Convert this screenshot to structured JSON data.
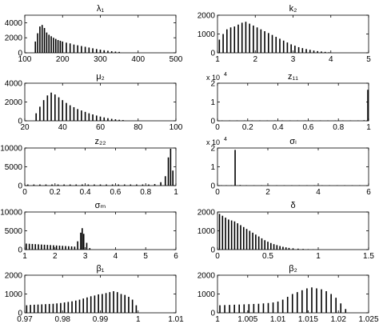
{
  "chart_data": [
    {
      "type": "bar",
      "title": "λ₁",
      "xlim": [
        100,
        500
      ],
      "ylim": [
        0,
        5000
      ],
      "xticks": [
        100,
        200,
        300,
        400,
        500
      ],
      "yticks": [
        0,
        2000,
        4000
      ],
      "xtick_labels": [
        "100",
        "200",
        "300",
        "400",
        "500"
      ],
      "ytick_labels": [
        "0",
        "2000",
        "4000"
      ],
      "y_exponent": "",
      "color": "#000000",
      "bins": [
        [
          128,
          1500
        ],
        [
          134,
          2600
        ],
        [
          140,
          3500
        ],
        [
          146,
          3700
        ],
        [
          152,
          3300
        ],
        [
          158,
          2700
        ],
        [
          164,
          2400
        ],
        [
          170,
          2200
        ],
        [
          176,
          2000
        ],
        [
          182,
          1850
        ],
        [
          188,
          1700
        ],
        [
          194,
          1600
        ],
        [
          200,
          1500
        ],
        [
          210,
          1350
        ],
        [
          220,
          1250
        ],
        [
          230,
          1100
        ],
        [
          240,
          1000
        ],
        [
          250,
          900
        ],
        [
          260,
          800
        ],
        [
          270,
          700
        ],
        [
          280,
          600
        ],
        [
          290,
          500
        ],
        [
          300,
          420
        ],
        [
          310,
          340
        ],
        [
          320,
          270
        ],
        [
          330,
          210
        ],
        [
          340,
          160
        ],
        [
          350,
          120
        ]
      ]
    },
    {
      "type": "bar",
      "title": "k₂",
      "xlim": [
        1,
        5
      ],
      "ylim": [
        0,
        2000
      ],
      "xticks": [
        1,
        2,
        3,
        4,
        5
      ],
      "yticks": [
        0,
        1000,
        2000
      ],
      "xtick_labels": [
        "1",
        "2",
        "3",
        "4",
        "5"
      ],
      "ytick_labels": [
        "0",
        "1000",
        "2000"
      ],
      "y_exponent": "",
      "color": "#000000",
      "bins": [
        [
          1.05,
          700
        ],
        [
          1.15,
          1000
        ],
        [
          1.25,
          1250
        ],
        [
          1.35,
          1350
        ],
        [
          1.45,
          1400
        ],
        [
          1.55,
          1500
        ],
        [
          1.65,
          1600
        ],
        [
          1.75,
          1650
        ],
        [
          1.85,
          1550
        ],
        [
          1.95,
          1450
        ],
        [
          2.05,
          1350
        ],
        [
          2.15,
          1250
        ],
        [
          2.25,
          1150
        ],
        [
          2.35,
          1050
        ],
        [
          2.45,
          950
        ],
        [
          2.55,
          850
        ],
        [
          2.65,
          750
        ],
        [
          2.75,
          650
        ],
        [
          2.85,
          550
        ],
        [
          2.95,
          450
        ],
        [
          3.05,
          380
        ],
        [
          3.15,
          300
        ],
        [
          3.25,
          250
        ],
        [
          3.35,
          200
        ],
        [
          3.45,
          160
        ],
        [
          3.55,
          120
        ],
        [
          3.65,
          90
        ],
        [
          3.75,
          70
        ],
        [
          3.85,
          50
        ],
        [
          3.95,
          30
        ]
      ]
    },
    {
      "type": "bar",
      "title": "μ₂",
      "xlim": [
        20,
        100
      ],
      "ylim": [
        0,
        4000
      ],
      "xticks": [
        20,
        40,
        60,
        80,
        100
      ],
      "yticks": [
        0,
        2000,
        4000
      ],
      "xtick_labels": [
        "20",
        "40",
        "60",
        "80",
        "100"
      ],
      "ytick_labels": [
        "0",
        "2000",
        "4000"
      ],
      "y_exponent": "",
      "color": "#000000",
      "bins": [
        [
          26,
          800
        ],
        [
          28,
          1500
        ],
        [
          30,
          2200
        ],
        [
          32,
          2700
        ],
        [
          34,
          3000
        ],
        [
          36,
          2800
        ],
        [
          38,
          2500
        ],
        [
          40,
          2200
        ],
        [
          42,
          1900
        ],
        [
          44,
          1650
        ],
        [
          46,
          1450
        ],
        [
          48,
          1250
        ],
        [
          50,
          1100
        ],
        [
          52,
          950
        ],
        [
          54,
          800
        ],
        [
          56,
          680
        ],
        [
          58,
          560
        ],
        [
          60,
          450
        ],
        [
          62,
          360
        ],
        [
          64,
          280
        ],
        [
          66,
          210
        ],
        [
          68,
          160
        ],
        [
          70,
          110
        ],
        [
          72,
          80
        ]
      ]
    },
    {
      "type": "bar",
      "title": "z₁₁",
      "xlim": [
        0,
        1
      ],
      "ylim": [
        0,
        20000
      ],
      "xticks": [
        0,
        0.2,
        0.4,
        0.6,
        0.8,
        1
      ],
      "yticks": [
        0,
        10000,
        20000
      ],
      "xtick_labels": [
        "0",
        "0.2",
        "0.4",
        "0.6",
        "0.8",
        "1"
      ],
      "ytick_labels": [
        "0",
        "1",
        "2"
      ],
      "y_exponent": "4",
      "color": "#000000",
      "bins": [
        [
          0.03,
          200
        ],
        [
          0.08,
          200
        ],
        [
          0.13,
          200
        ],
        [
          0.18,
          200
        ],
        [
          0.23,
          200
        ],
        [
          0.28,
          200
        ],
        [
          0.33,
          200
        ],
        [
          0.38,
          200
        ],
        [
          0.43,
          200
        ],
        [
          0.48,
          200
        ],
        [
          0.53,
          200
        ],
        [
          0.58,
          200
        ],
        [
          0.63,
          200
        ],
        [
          0.68,
          200
        ],
        [
          0.73,
          200
        ],
        [
          0.78,
          200
        ],
        [
          0.83,
          200
        ],
        [
          0.88,
          200
        ],
        [
          0.93,
          200
        ],
        [
          0.97,
          300
        ],
        [
          0.995,
          16500
        ]
      ]
    },
    {
      "type": "bar",
      "title": "z₂₂",
      "xlim": [
        0,
        1
      ],
      "ylim": [
        0,
        10000
      ],
      "xticks": [
        0,
        0.2,
        0.4,
        0.6,
        0.8,
        1
      ],
      "yticks": [
        0,
        5000,
        10000
      ],
      "xtick_labels": [
        "0",
        "0.2",
        "0.4",
        "0.6",
        "0.8",
        "1"
      ],
      "ytick_labels": [
        "0",
        "5000",
        "10000"
      ],
      "y_exponent": "",
      "color": "#000000",
      "bins": [
        [
          0.02,
          300
        ],
        [
          0.06,
          300
        ],
        [
          0.1,
          300
        ],
        [
          0.14,
          300
        ],
        [
          0.18,
          300
        ],
        [
          0.22,
          300
        ],
        [
          0.26,
          300
        ],
        [
          0.3,
          300
        ],
        [
          0.34,
          300
        ],
        [
          0.38,
          300
        ],
        [
          0.42,
          300
        ],
        [
          0.46,
          300
        ],
        [
          0.5,
          300
        ],
        [
          0.54,
          300
        ],
        [
          0.58,
          300
        ],
        [
          0.62,
          300
        ],
        [
          0.66,
          300
        ],
        [
          0.7,
          300
        ],
        [
          0.74,
          300
        ],
        [
          0.78,
          300
        ],
        [
          0.82,
          300
        ],
        [
          0.86,
          400
        ],
        [
          0.9,
          900
        ],
        [
          0.93,
          2500
        ],
        [
          0.95,
          7500
        ],
        [
          0.965,
          9800
        ],
        [
          0.98,
          4000
        ]
      ]
    },
    {
      "type": "bar",
      "title": "σₗ",
      "xlim": [
        0,
        6
      ],
      "ylim": [
        0,
        20000
      ],
      "xticks": [
        0,
        2,
        4,
        6
      ],
      "yticks": [
        0,
        10000,
        20000
      ],
      "xtick_labels": [
        "0",
        "2",
        "4",
        "6"
      ],
      "ytick_labels": [
        "0",
        "1",
        "2"
      ],
      "y_exponent": "4",
      "color": "#000000",
      "bins": [
        [
          0.15,
          200
        ],
        [
          0.35,
          200
        ],
        [
          0.55,
          200
        ],
        [
          0.7,
          19000
        ],
        [
          0.9,
          300
        ],
        [
          1.15,
          200
        ],
        [
          1.45,
          200
        ],
        [
          1.75,
          200
        ],
        [
          2.05,
          200
        ],
        [
          2.35,
          200
        ],
        [
          2.65,
          200
        ],
        [
          2.95,
          200
        ],
        [
          3.25,
          200
        ],
        [
          3.55,
          200
        ],
        [
          3.85,
          200
        ],
        [
          4.15,
          200
        ],
        [
          4.45,
          200
        ],
        [
          4.75,
          200
        ],
        [
          5.05,
          200
        ],
        [
          5.35,
          200
        ],
        [
          5.65,
          200
        ]
      ]
    },
    {
      "type": "bar",
      "title": "σₘ",
      "xlim": [
        1,
        6
      ],
      "ylim": [
        0,
        10000
      ],
      "xticks": [
        1,
        2,
        3,
        4,
        5,
        6
      ],
      "yticks": [
        0,
        5000,
        10000
      ],
      "xtick_labels": [
        "1",
        "2",
        "3",
        "4",
        "5",
        "6"
      ],
      "ytick_labels": [
        "0",
        "5000",
        "10000"
      ],
      "y_exponent": "",
      "color": "#000000",
      "bins": [
        [
          1.05,
          1600
        ],
        [
          1.15,
          1550
        ],
        [
          1.25,
          1500
        ],
        [
          1.35,
          1450
        ],
        [
          1.45,
          1400
        ],
        [
          1.55,
          1350
        ],
        [
          1.65,
          1300
        ],
        [
          1.75,
          1250
        ],
        [
          1.85,
          1200
        ],
        [
          1.95,
          1150
        ],
        [
          2.05,
          1100
        ],
        [
          2.15,
          1050
        ],
        [
          2.25,
          1000
        ],
        [
          2.35,
          950
        ],
        [
          2.45,
          900
        ],
        [
          2.55,
          850
        ],
        [
          2.65,
          800
        ],
        [
          2.75,
          2200
        ],
        [
          2.85,
          4500
        ],
        [
          2.9,
          5700
        ],
        [
          2.95,
          4200
        ],
        [
          3.05,
          1800
        ],
        [
          3.15,
          400
        ]
      ]
    },
    {
      "type": "bar",
      "title": "δ",
      "xlim": [
        0,
        1.5
      ],
      "ylim": [
        0,
        2000
      ],
      "xticks": [
        0,
        0.5,
        1,
        1.5
      ],
      "yticks": [
        0,
        1000,
        2000
      ],
      "xtick_labels": [
        "0",
        "0.5",
        "1",
        "1.5"
      ],
      "ytick_labels": [
        "0",
        "1000",
        "2000"
      ],
      "y_exponent": "",
      "color": "#000000",
      "bins": [
        [
          0.02,
          1900
        ],
        [
          0.05,
          1800
        ],
        [
          0.08,
          1700
        ],
        [
          0.11,
          1600
        ],
        [
          0.14,
          1550
        ],
        [
          0.17,
          1500
        ],
        [
          0.2,
          1400
        ],
        [
          0.23,
          1300
        ],
        [
          0.26,
          1200
        ],
        [
          0.29,
          1100
        ],
        [
          0.32,
          1000
        ],
        [
          0.35,
          900
        ],
        [
          0.38,
          800
        ],
        [
          0.41,
          700
        ],
        [
          0.44,
          600
        ],
        [
          0.47,
          500
        ],
        [
          0.5,
          420
        ],
        [
          0.53,
          350
        ],
        [
          0.56,
          290
        ],
        [
          0.59,
          240
        ],
        [
          0.62,
          190
        ],
        [
          0.65,
          150
        ],
        [
          0.68,
          120
        ],
        [
          0.71,
          90
        ],
        [
          0.75,
          70
        ],
        [
          0.8,
          50
        ],
        [
          0.85,
          35
        ],
        [
          0.9,
          25
        ],
        [
          0.95,
          15
        ]
      ]
    },
    {
      "type": "bar",
      "title": "β₁",
      "xlim": [
        0.97,
        1.01
      ],
      "ylim": [
        0,
        2000
      ],
      "xticks": [
        0.97,
        0.98,
        0.99,
        1.0,
        1.01
      ],
      "yticks": [
        0,
        1000,
        2000
      ],
      "xtick_labels": [
        "0.97",
        "0.98",
        "0.99",
        "1",
        "1.01"
      ],
      "ytick_labels": [
        "0",
        "1000",
        "2000"
      ],
      "y_exponent": "",
      "color": "#000000",
      "bins": [
        [
          0.9705,
          400
        ],
        [
          0.9715,
          420
        ],
        [
          0.9725,
          430
        ],
        [
          0.9735,
          440
        ],
        [
          0.9745,
          450
        ],
        [
          0.9755,
          460
        ],
        [
          0.9765,
          470
        ],
        [
          0.9775,
          480
        ],
        [
          0.9785,
          500
        ],
        [
          0.9795,
          520
        ],
        [
          0.9805,
          550
        ],
        [
          0.9815,
          580
        ],
        [
          0.9825,
          610
        ],
        [
          0.9835,
          650
        ],
        [
          0.9845,
          700
        ],
        [
          0.9855,
          760
        ],
        [
          0.9865,
          820
        ],
        [
          0.9875,
          880
        ],
        [
          0.9885,
          920
        ],
        [
          0.9895,
          980
        ],
        [
          0.9905,
          1000
        ],
        [
          0.9915,
          1050
        ],
        [
          0.9925,
          1100
        ],
        [
          0.9935,
          1150
        ],
        [
          0.9945,
          1100
        ],
        [
          0.9955,
          1000
        ],
        [
          0.9965,
          950
        ],
        [
          0.9975,
          850
        ],
        [
          0.9985,
          700
        ],
        [
          0.9995,
          400
        ]
      ]
    },
    {
      "type": "bar",
      "title": "β₂",
      "xlim": [
        1,
        1.025
      ],
      "ylim": [
        0,
        2000
      ],
      "xticks": [
        1,
        1.005,
        1.01,
        1.015,
        1.02,
        1.025
      ],
      "yticks": [
        0,
        1000,
        2000
      ],
      "xtick_labels": [
        "1",
        "1.005",
        "1.01",
        "1.015",
        "1.02",
        "1.025"
      ],
      "ytick_labels": [
        "0",
        "1000",
        "2000"
      ],
      "y_exponent": "",
      "color": "#000000",
      "bins": [
        [
          1.0004,
          400
        ],
        [
          1.0012,
          410
        ],
        [
          1.002,
          420
        ],
        [
          1.0028,
          430
        ],
        [
          1.0036,
          440
        ],
        [
          1.0044,
          450
        ],
        [
          1.0052,
          460
        ],
        [
          1.006,
          470
        ],
        [
          1.0068,
          480
        ],
        [
          1.0076,
          500
        ],
        [
          1.0084,
          520
        ],
        [
          1.0092,
          550
        ],
        [
          1.01,
          600
        ],
        [
          1.0108,
          700
        ],
        [
          1.0116,
          850
        ],
        [
          1.0124,
          1000
        ],
        [
          1.0132,
          1100
        ],
        [
          1.014,
          1200
        ],
        [
          1.0148,
          1300
        ],
        [
          1.0156,
          1350
        ],
        [
          1.0164,
          1300
        ],
        [
          1.0172,
          1250
        ],
        [
          1.018,
          1150
        ],
        [
          1.0188,
          1000
        ],
        [
          1.0196,
          800
        ],
        [
          1.0204,
          500
        ],
        [
          1.0212,
          200
        ]
      ]
    }
  ]
}
